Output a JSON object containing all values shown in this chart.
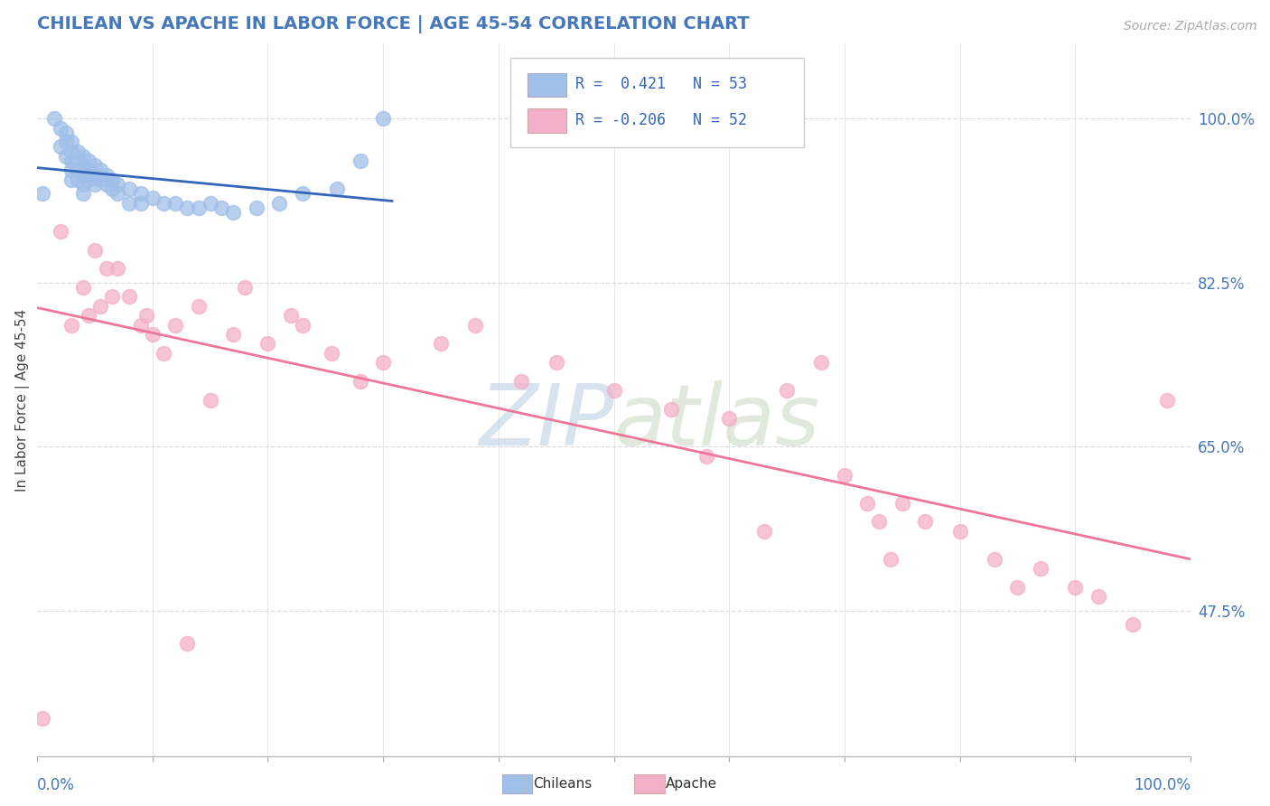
{
  "title": "CHILEAN VS APACHE IN LABOR FORCE | AGE 45-54 CORRELATION CHART",
  "source_text": "Source: ZipAtlas.com",
  "ylabel": "In Labor Force | Age 45-54",
  "ytick_labels": [
    "100.0%",
    "82.5%",
    "65.0%",
    "47.5%"
  ],
  "ytick_values": [
    1.0,
    0.825,
    0.65,
    0.475
  ],
  "chilean_color": "#a0bfe8",
  "apache_color": "#f4b0c8",
  "chilean_line_color": "#3366bb",
  "apache_line_color": "#ee7799",
  "watermark_zip": "ZIP",
  "watermark_atlas": "atlas",
  "watermark_color": "#c8d8ee",
  "bg_color": "#ffffff",
  "grid_color": "#dddddd",
  "title_color": "#4477bb",
  "legend_blue_color": "#a0c0e8",
  "legend_pink_color": "#f4b0c8",
  "chilean_x": [
    0.005,
    0.015,
    0.02,
    0.02,
    0.025,
    0.025,
    0.025,
    0.03,
    0.03,
    0.03,
    0.03,
    0.03,
    0.035,
    0.035,
    0.035,
    0.035,
    0.04,
    0.04,
    0.04,
    0.04,
    0.04,
    0.045,
    0.045,
    0.045,
    0.05,
    0.05,
    0.05,
    0.055,
    0.055,
    0.06,
    0.06,
    0.065,
    0.065,
    0.07,
    0.07,
    0.08,
    0.08,
    0.09,
    0.09,
    0.1,
    0.11,
    0.12,
    0.13,
    0.14,
    0.15,
    0.16,
    0.17,
    0.19,
    0.21,
    0.23,
    0.26,
    0.28,
    0.3
  ],
  "chilean_y": [
    0.92,
    1.0,
    0.99,
    0.97,
    0.985,
    0.975,
    0.96,
    0.975,
    0.965,
    0.955,
    0.945,
    0.935,
    0.965,
    0.955,
    0.945,
    0.935,
    0.96,
    0.95,
    0.94,
    0.93,
    0.92,
    0.955,
    0.945,
    0.935,
    0.95,
    0.94,
    0.93,
    0.945,
    0.935,
    0.94,
    0.93,
    0.935,
    0.925,
    0.93,
    0.92,
    0.925,
    0.91,
    0.92,
    0.91,
    0.915,
    0.91,
    0.91,
    0.905,
    0.905,
    0.91,
    0.905,
    0.9,
    0.905,
    0.91,
    0.92,
    0.925,
    0.955,
    1.0
  ],
  "apache_x": [
    0.005,
    0.02,
    0.03,
    0.04,
    0.045,
    0.05,
    0.055,
    0.06,
    0.065,
    0.07,
    0.08,
    0.09,
    0.095,
    0.1,
    0.11,
    0.12,
    0.13,
    0.14,
    0.15,
    0.17,
    0.18,
    0.2,
    0.22,
    0.23,
    0.255,
    0.28,
    0.3,
    0.35,
    0.38,
    0.42,
    0.45,
    0.5,
    0.55,
    0.58,
    0.6,
    0.63,
    0.65,
    0.68,
    0.7,
    0.72,
    0.73,
    0.74,
    0.75,
    0.77,
    0.8,
    0.83,
    0.85,
    0.87,
    0.9,
    0.92,
    0.95,
    0.98
  ],
  "apache_y": [
    0.36,
    0.88,
    0.78,
    0.82,
    0.79,
    0.86,
    0.8,
    0.84,
    0.81,
    0.84,
    0.81,
    0.78,
    0.79,
    0.77,
    0.75,
    0.78,
    0.44,
    0.8,
    0.7,
    0.77,
    0.82,
    0.76,
    0.79,
    0.78,
    0.75,
    0.72,
    0.74,
    0.76,
    0.78,
    0.72,
    0.74,
    0.71,
    0.69,
    0.64,
    0.68,
    0.56,
    0.71,
    0.74,
    0.62,
    0.59,
    0.57,
    0.53,
    0.59,
    0.57,
    0.56,
    0.53,
    0.5,
    0.52,
    0.5,
    0.49,
    0.46,
    0.7
  ]
}
